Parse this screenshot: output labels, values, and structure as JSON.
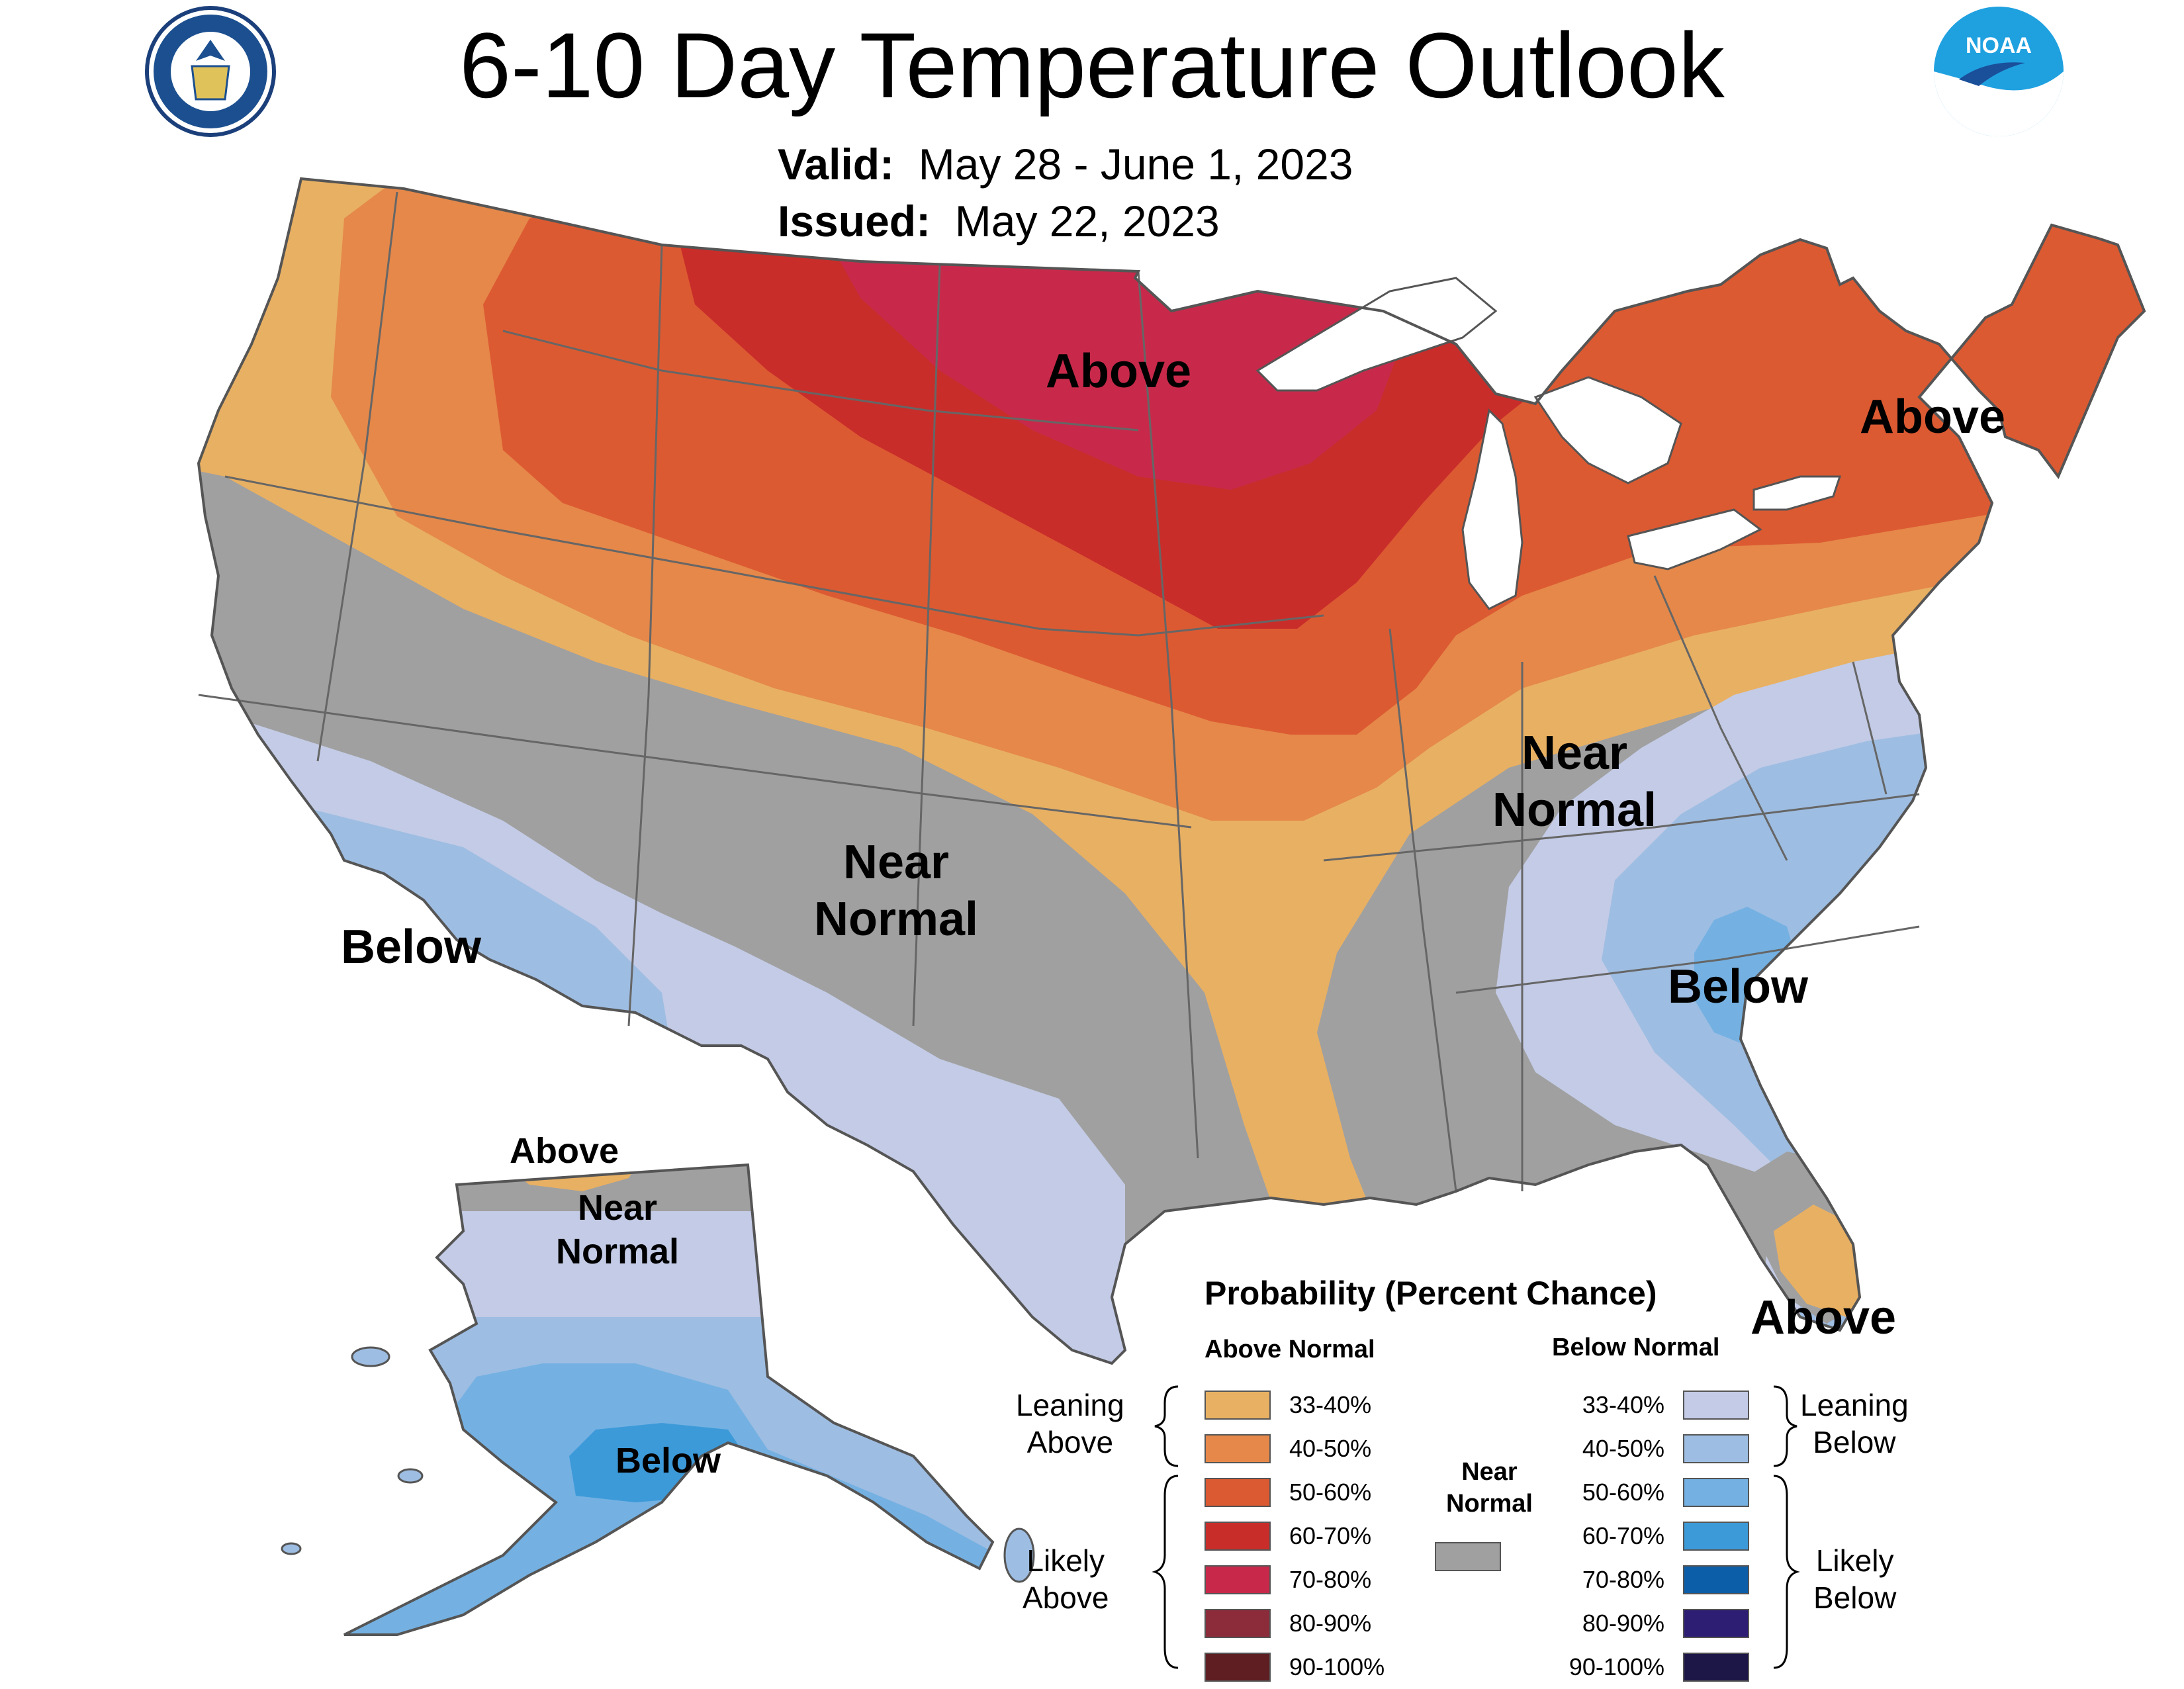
{
  "title": "6-10 Day Temperature Outlook",
  "valid_label": "Valid:",
  "valid_value": "May 28 - June 1, 2023",
  "issued_label": "Issued:",
  "issued_value": "May 22, 2023",
  "logos": {
    "left": "department-of-commerce-seal",
    "right": "noaa-logo",
    "noaa_text": "NOAA"
  },
  "map_labels": {
    "north_above": "Above",
    "northeast_above": "Above",
    "central_near": "Near\nNormal",
    "east_near": "Near\nNormal",
    "southwest_below": "Below",
    "southeast_below": "Below",
    "florida_above": "Above",
    "ak_above": "Above",
    "ak_near": "Near\nNormal",
    "ak_below": "Below"
  },
  "legend": {
    "title": "Probability (Percent Chance)",
    "above_header": "Above Normal",
    "below_header": "Below Normal",
    "near_header": "Near\nNormal",
    "leaning_above": "Leaning\nAbove",
    "likely_above": "Likely\nAbove",
    "leaning_below": "Leaning\nBelow",
    "likely_below": "Likely\nBelow",
    "above": [
      {
        "label": "33-40%",
        "color": "#e8b063"
      },
      {
        "label": "40-50%",
        "color": "#e5884a"
      },
      {
        "label": "50-60%",
        "color": "#dc5a32"
      },
      {
        "label": "60-70%",
        "color": "#c92d2a"
      },
      {
        "label": "70-80%",
        "color": "#c8294a"
      },
      {
        "label": "80-90%",
        "color": "#8c2b3a"
      },
      {
        "label": "90-100%",
        "color": "#5e1e22"
      }
    ],
    "below": [
      {
        "label": "33-40%",
        "color": "#c3cbe6"
      },
      {
        "label": "40-50%",
        "color": "#9ebde2"
      },
      {
        "label": "50-60%",
        "color": "#74b1e2"
      },
      {
        "label": "60-70%",
        "color": "#3d9ad9"
      },
      {
        "label": "70-80%",
        "color": "#0c5ea8"
      },
      {
        "label": "80-90%",
        "color": "#2d1d73"
      },
      {
        "label": "90-100%",
        "color": "#1d1748"
      }
    ],
    "near_color": "#a0a0a0"
  },
  "colors": {
    "water": "#ffffff",
    "border": "#555555"
  }
}
